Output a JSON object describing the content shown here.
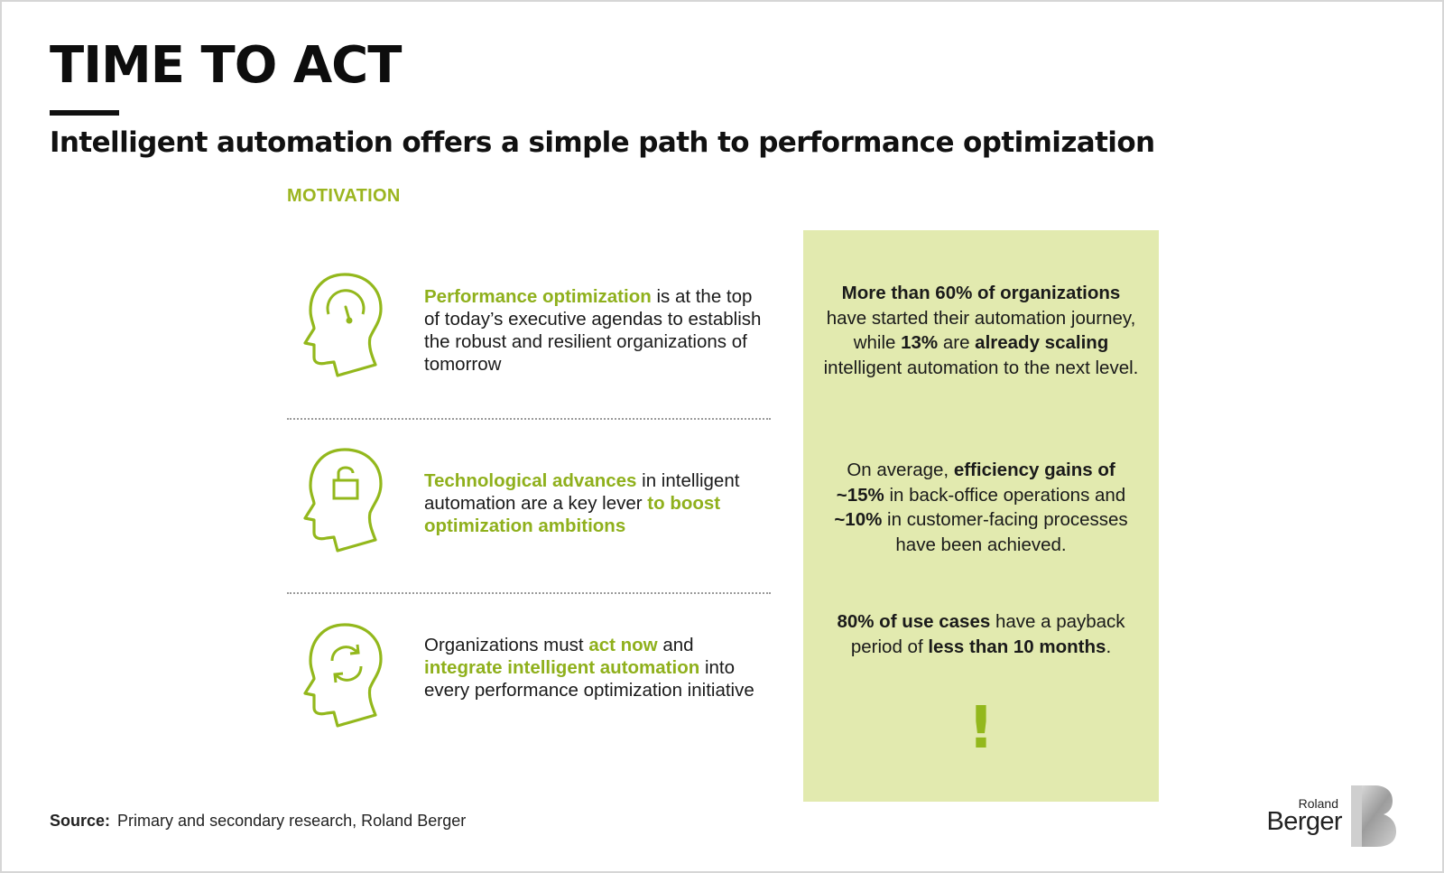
{
  "header": {
    "title": "TIME TO ACT",
    "subtitle": "Intelligent automation offers a simple path to performance optimization"
  },
  "motivation": {
    "label": "MOTIVATION",
    "items": [
      {
        "icon": "head-gauge-icon",
        "parts": [
          {
            "text": "Performance optimization",
            "highlight": true
          },
          {
            "text": " is at the top of today’s executive agendas to establish the robust and resilient organizations of tomorrow",
            "highlight": false
          }
        ]
      },
      {
        "icon": "head-lock-icon",
        "parts": [
          {
            "text": "Technological advances",
            "highlight": true
          },
          {
            "text": "  in intelligent automation are a key lever ",
            "highlight": false
          },
          {
            "text": "to boost optimization ambitions",
            "highlight": true
          }
        ]
      },
      {
        "icon": "head-refresh-icon",
        "parts": [
          {
            "text": "Organizations must ",
            "highlight": false
          },
          {
            "text": "act now",
            "highlight": true
          },
          {
            "text": " and ",
            "highlight": false
          },
          {
            "text": "integrate intelligent automation",
            "highlight": true
          },
          {
            "text": " into every performance optimization initiative",
            "highlight": false
          }
        ]
      }
    ]
  },
  "stats": [
    {
      "parts": [
        {
          "text": "More than 60% of organizations",
          "bold": true
        },
        {
          "text": " have started their automation journey, while ",
          "bold": false
        },
        {
          "text": "13%",
          "bold": true
        },
        {
          "text": " are ",
          "bold": false
        },
        {
          "text": "already scaling",
          "bold": true
        },
        {
          "text": " intelligent automation to the next level.",
          "bold": false
        }
      ]
    },
    {
      "parts": [
        {
          "text": "On average, ",
          "bold": false
        },
        {
          "text": "efficiency gains of ~15%",
          "bold": true
        },
        {
          "text": " in back-office operations and ",
          "bold": false
        },
        {
          "text": "~10%",
          "bold": true
        },
        {
          "text": " in customer-facing processes have been achieved.",
          "bold": false
        }
      ]
    },
    {
      "parts": [
        {
          "text": "80% of use cases",
          "bold": true
        },
        {
          "text": " have a payback period of ",
          "bold": false
        },
        {
          "text": "less than 10 months",
          "bold": true
        },
        {
          "text": ".",
          "bold": false
        }
      ]
    }
  ],
  "exclamation": "!",
  "footer": {
    "source_label": "Source:",
    "source_text": "Primary and secondary research, Roland Berger"
  },
  "logo": {
    "line1": "Roland",
    "line2": "Berger"
  },
  "colors": {
    "accent_green": "#8fb01c",
    "panel_bg": "#e2eaaf"
  }
}
